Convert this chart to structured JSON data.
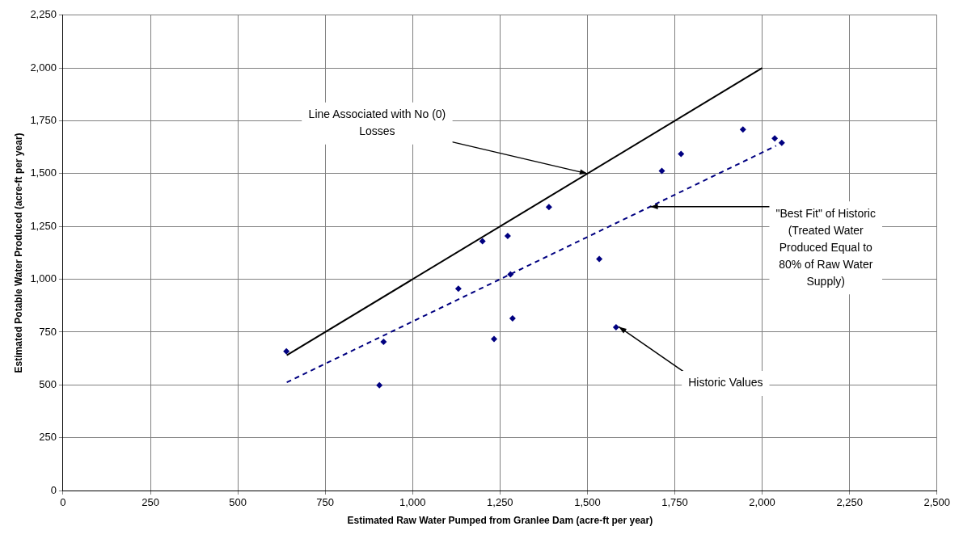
{
  "chart_data": {
    "type": "scatter",
    "xlabel": "Estimated Raw Water Pumped from Granlee Dam (acre-ft per year)",
    "ylabel": "Estimated Potable Water Produced (acre-ft per year)",
    "xlim": [
      0,
      2500
    ],
    "xticks": [
      0,
      250,
      500,
      750,
      {
        "value": 1000,
        "label": "1,000"
      },
      {
        "value": 1250,
        "label": "1,250"
      },
      {
        "value": 1500,
        "label": "1,500"
      },
      {
        "value": 1750,
        "label": "1,750"
      },
      {
        "value": 2000,
        "label": "2,000"
      },
      {
        "value": 2250,
        "label": "2,250"
      },
      {
        "value": 2500,
        "label": "2,500"
      }
    ],
    "ylim": [
      0,
      2250
    ],
    "yticks": [
      0,
      250,
      500,
      750,
      {
        "value": 1000,
        "label": "1,000"
      },
      {
        "value": 1250,
        "label": "1,250"
      },
      {
        "value": 1500,
        "label": "1,500"
      },
      {
        "value": 1750,
        "label": "1,750"
      },
      {
        "value": 2000,
        "label": "2,000"
      },
      {
        "value": 2250,
        "label": "2,250"
      }
    ],
    "grid": true,
    "series": [
      {
        "type": "scatter",
        "color": "#000080",
        "marker": "diamond",
        "x": [
          639,
          905,
          917,
          1131,
          1200,
          1233,
          1272,
          1280,
          1286,
          1390,
          1534,
          1582,
          1713,
          1768,
          1945,
          2036,
          2056
        ],
        "values": [
          659,
          498,
          704,
          955,
          1180,
          717,
          1205,
          1023,
          815,
          1342,
          1096,
          773,
          1513,
          1593,
          1709,
          1667,
          1646
        ]
      },
      {
        "type": "line",
        "color": "#000000",
        "line_style": "solid",
        "x": [
          640,
          2000
        ],
        "values": [
          640,
          2000
        ]
      },
      {
        "type": "line",
        "color": "#000080",
        "line_style": "dashed",
        "x": [
          640,
          2040
        ],
        "values": [
          512,
          1632
        ]
      }
    ],
    "annotations": [
      {
        "text": "Line Associated with No (0)\nLosses",
        "x": 1500,
        "y": 1500
      },
      {
        "text": "\"Best Fit\" of Historic\n(Treated Water\nProduced Equal to\n80% of Raw Water\nSupply)",
        "x": 1680,
        "y": 1344
      },
      {
        "text": "Historic Values",
        "x": 1590,
        "y": 775
      }
    ]
  }
}
